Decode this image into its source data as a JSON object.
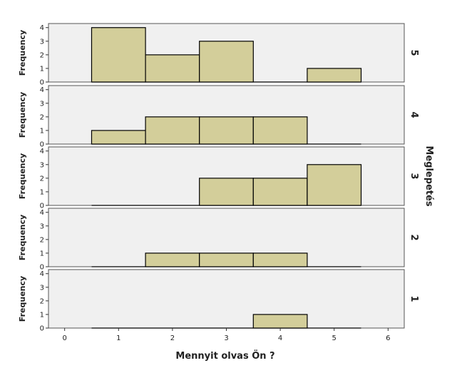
{
  "chart_data": {
    "type": "bar",
    "subtype": "faceted-histogram",
    "xlabel": "Mennyit olvas Ön ?",
    "ylabel": "Frequency",
    "facet_label": "Meglepetés",
    "xlim": [
      -0.3,
      6.3
    ],
    "ylim": [
      0,
      4.3
    ],
    "x_ticks": [
      0,
      1,
      2,
      3,
      4,
      5,
      6
    ],
    "y_ticks": [
      0,
      1,
      2,
      3,
      4
    ],
    "bins": [
      1,
      2,
      3,
      4,
      5
    ],
    "panels": [
      {
        "facet": "5",
        "values": [
          4,
          2,
          3,
          0,
          1
        ]
      },
      {
        "facet": "4",
        "values": [
          1,
          2,
          2,
          2,
          0
        ]
      },
      {
        "facet": "3",
        "values": [
          0,
          0,
          2,
          2,
          3
        ]
      },
      {
        "facet": "2",
        "values": [
          0,
          1,
          1,
          1,
          0
        ]
      },
      {
        "facet": "1",
        "values": [
          0,
          0,
          0,
          1,
          0
        ]
      }
    ],
    "colors": {
      "bar": "#d3ce9a",
      "panel_background": "#f0f0f0"
    }
  }
}
